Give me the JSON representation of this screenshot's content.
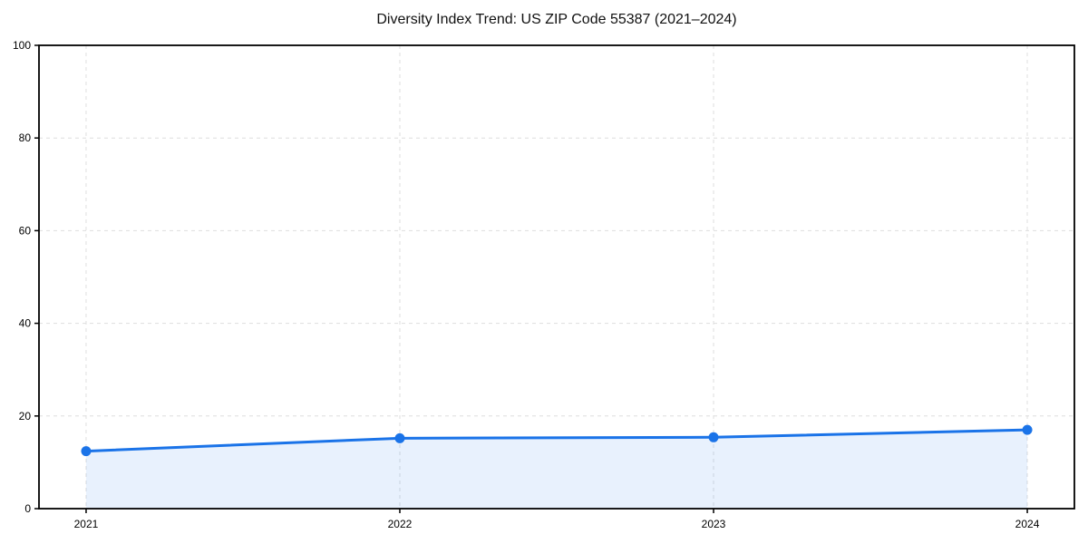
{
  "chart_data": {
    "type": "line",
    "title": "Diversity Index Trend: US ZIP Code 55387 (2021–2024)",
    "x": [
      2021,
      2022,
      2023,
      2024
    ],
    "xticks": [
      "2021",
      "2022",
      "2023",
      "2024"
    ],
    "yticks": [
      0,
      20,
      40,
      60,
      80,
      100
    ],
    "ylim": [
      0,
      100
    ],
    "series": [
      {
        "name": "Diversity Index",
        "values": [
          12.4,
          15.2,
          15.4,
          17.0
        ]
      }
    ],
    "xlabel": "",
    "ylabel": "",
    "grid": true,
    "grid_style": "dashed",
    "legend": "none",
    "colors": {
      "line": "#1a73e8",
      "marker": "#1a73e8",
      "area_fill": "rgba(26,115,232,0.10)",
      "grid": "#dedede",
      "spine": "#000000",
      "tick_label": "#000000"
    }
  }
}
